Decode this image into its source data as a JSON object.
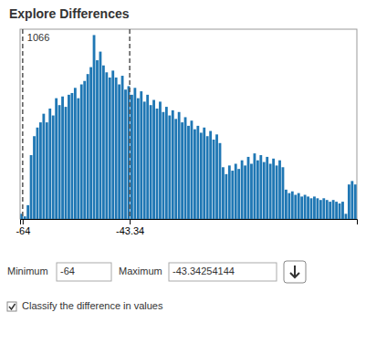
{
  "chart_data": {
    "type": "bar",
    "title": "Explore Differences",
    "categories": [
      null,
      null,
      null,
      null,
      null,
      null,
      null,
      null,
      null,
      null,
      null,
      null,
      null,
      null,
      null,
      null,
      null,
      null,
      null,
      null,
      null,
      null,
      null,
      null,
      null,
      null,
      null,
      null,
      null,
      null,
      null,
      null,
      null,
      null,
      null,
      null,
      null,
      null,
      null,
      null,
      null,
      null,
      null,
      null,
      null,
      null,
      null,
      null,
      null,
      null,
      null,
      null,
      null,
      null,
      null,
      null,
      null,
      null,
      null,
      null,
      null,
      null,
      null,
      null,
      null,
      null,
      null,
      null,
      null,
      null,
      null,
      null,
      null,
      null,
      null,
      null,
      null,
      null,
      null,
      null,
      null,
      null,
      null,
      null,
      null,
      null,
      null,
      null,
      null,
      null,
      null,
      null,
      null,
      null,
      null,
      null,
      null,
      null,
      null,
      null,
      null,
      null,
      null,
      null,
      null,
      null,
      null
    ],
    "values": [
      30,
      15,
      80,
      370,
      480,
      530,
      560,
      610,
      560,
      640,
      600,
      700,
      660,
      710,
      650,
      720,
      730,
      760,
      700,
      780,
      800,
      840,
      880,
      1066,
      920,
      970,
      890,
      850,
      820,
      860,
      820,
      780,
      830,
      750,
      770,
      720,
      760,
      700,
      740,
      680,
      720,
      660,
      690,
      640,
      680,
      620,
      650,
      600,
      630,
      580,
      620,
      560,
      590,
      540,
      570,
      520,
      540,
      500,
      530,
      480,
      510,
      460,
      490,
      440,
      300,
      260,
      310,
      280,
      320,
      290,
      340,
      310,
      360,
      320,
      380,
      340,
      370,
      330,
      360,
      320,
      350,
      310,
      340,
      300,
      170,
      150,
      160,
      140,
      150,
      130,
      140,
      130,
      120,
      130,
      120,
      110,
      120,
      110,
      100,
      110,
      100,
      90,
      100,
      30,
      200,
      220,
      200
    ],
    "xlim": [
      -64.5,
      0.5
    ],
    "xticks": [
      -64,
      -43.34
    ],
    "ylim": [
      0,
      1100
    ],
    "tick_labels": "x",
    "annotations": [
      {
        "text": "1066"
      },
      {
        "text": "Minimum"
      },
      {
        "text": "-64"
      },
      {
        "text": "Maximum"
      },
      {
        "text": "-43.34254144"
      },
      {
        "text": "Classify the difference in values"
      }
    ]
  }
}
